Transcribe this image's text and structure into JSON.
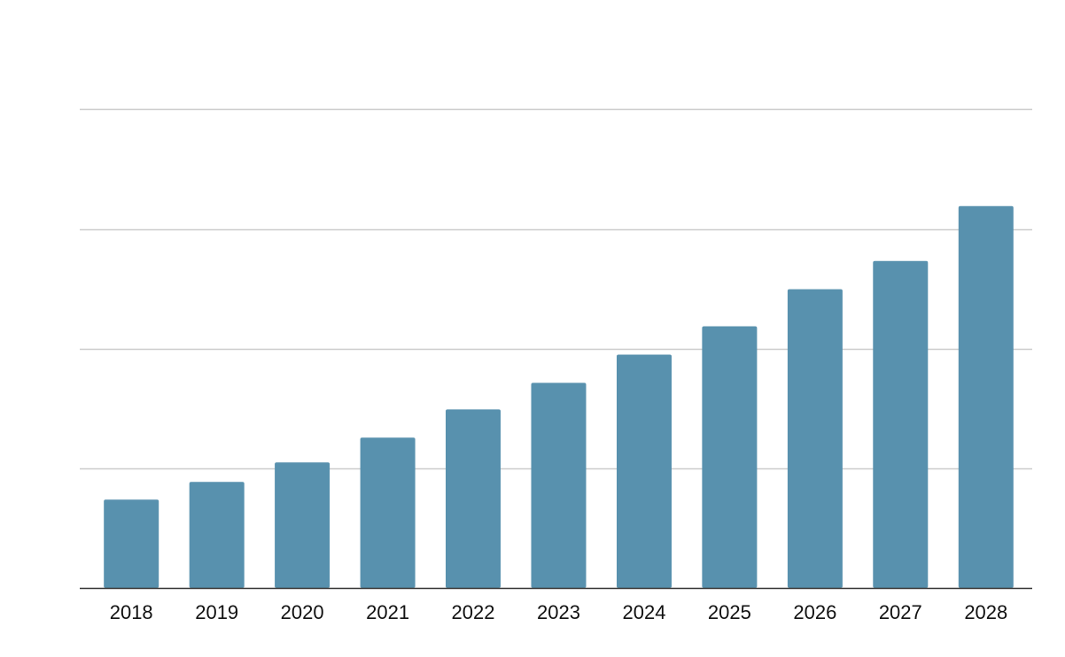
{
  "chart_data": {
    "type": "bar",
    "title": "",
    "xlabel": "",
    "ylabel": "",
    "categories": [
      "2018",
      "2019",
      "2020",
      "2021",
      "2022",
      "2023",
      "2024",
      "2025",
      "2026",
      "2027",
      "2028"
    ],
    "values": [
      100,
      120,
      142,
      170,
      202,
      232,
      264,
      296,
      338,
      370,
      432
    ],
    "ylim": [
      0,
      542
    ],
    "y_gridlines": [
      135,
      270,
      406,
      542
    ],
    "y_tick_labels_shown": false,
    "grid": true,
    "legend": "none",
    "colors": {
      "bar": "#5891ae",
      "grid": "#cccccc",
      "axis": "#333333",
      "text": "#111111"
    }
  }
}
